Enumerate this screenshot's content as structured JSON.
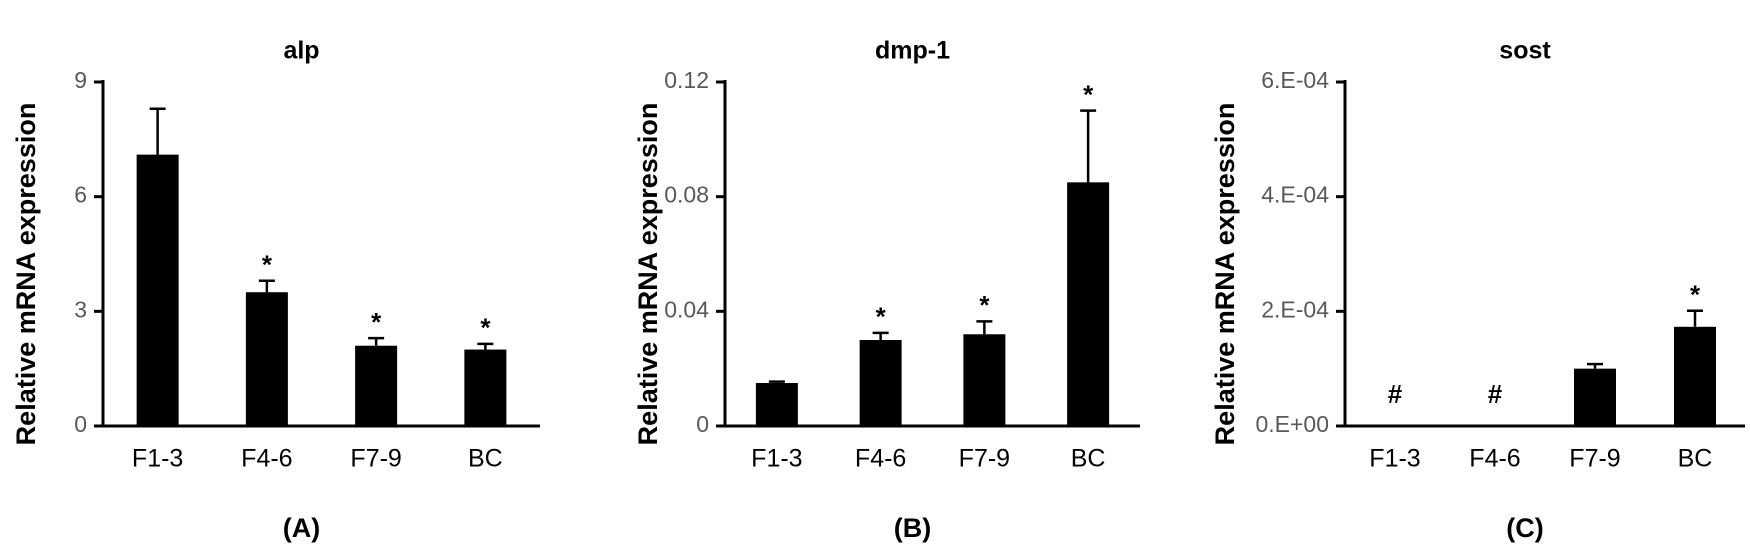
{
  "chart_data": [
    {
      "type": "bar",
      "title": "alp",
      "panel_label": "(A)",
      "y_label": "Relative mRNA expression",
      "categories": [
        "F1-3",
        "F4-6",
        "F7-9",
        "BC"
      ],
      "values": [
        7.1,
        3.5,
        2.1,
        2.0
      ],
      "errors": [
        1.2,
        0.3,
        0.2,
        0.15
      ],
      "annotations": [
        null,
        "*",
        "*",
        "*"
      ],
      "color": "#000000",
      "ylim": [
        0,
        9
      ],
      "yticks": [
        0,
        3,
        6,
        9
      ]
    },
    {
      "type": "bar",
      "title": "dmp-1",
      "panel_label": "(B)",
      "y_label": "Relative mRNA expression",
      "categories": [
        "F1-3",
        "F4-6",
        "F7-9",
        "BC"
      ],
      "values": [
        0.015,
        0.03,
        0.032,
        0.085
      ],
      "errors": [
        0.0005,
        0.0025,
        0.0045,
        0.025
      ],
      "annotations": [
        null,
        "*",
        "*",
        "*"
      ],
      "color": "#000000",
      "ylim": [
        0,
        0.12
      ],
      "yticks": [
        0,
        0.04,
        0.08,
        0.12
      ]
    },
    {
      "type": "bar",
      "title": "sost",
      "panel_label": "(C)",
      "y_label": "Relative mRNA expression",
      "categories": [
        "F1-3",
        "F4-6",
        "F7-9",
        "BC"
      ],
      "values": [
        null,
        null,
        0.0001,
        0.000173
      ],
      "errors": [
        null,
        null,
        8e-06,
        2.8e-05
      ],
      "annotations": [
        "#",
        "#",
        null,
        "*"
      ],
      "color": "#000000",
      "ylim": [
        0,
        0.0006
      ],
      "yticks": [
        {
          "value": 0,
          "label": "0.E+00"
        },
        {
          "value": 0.0002,
          "label": "2.E-04"
        },
        {
          "value": 0.0004,
          "label": "4.E-04"
        },
        {
          "value": 0.0006,
          "label": "6.E-04"
        }
      ]
    }
  ]
}
